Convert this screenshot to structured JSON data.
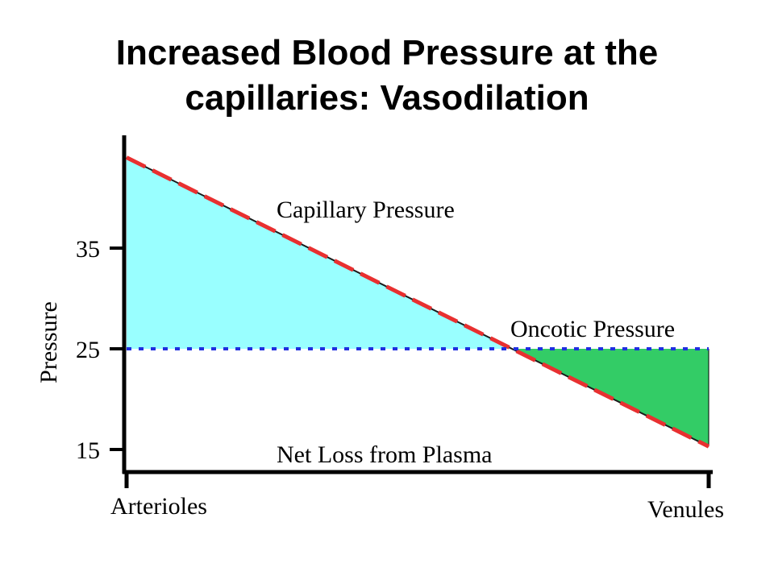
{
  "slide": {
    "title_line1": "Increased Blood Pressure at the",
    "title_line2": "capillaries:  Vasodilation"
  },
  "chart_data": {
    "type": "area",
    "title": "",
    "ylabel": "Pressure",
    "xlabel": "",
    "x_tick_labels": [
      "Arterioles",
      "Venules"
    ],
    "y_ticks": [
      35,
      25,
      15
    ],
    "ylim": [
      13,
      45
    ],
    "xlim": [
      0,
      1
    ],
    "grid": false,
    "series": [
      {
        "name": "Capillary Pressure",
        "x": [
          0,
          1
        ],
        "values": [
          44,
          15.3
        ],
        "color": "#e83030",
        "style": "dashed"
      },
      {
        "name": "Oncotic Pressure",
        "x": [
          0,
          1
        ],
        "values": [
          25,
          25
        ],
        "color": "#1f2fe0",
        "style": "dotted"
      }
    ],
    "regions": [
      {
        "label": "",
        "from": 0,
        "to": 0.6625,
        "color": "#99ffff"
      },
      {
        "label": "Net Loss from Plasma",
        "from": 0.6625,
        "to": 1,
        "color": "#33cc66"
      }
    ],
    "annotations": [
      "Capillary Pressure",
      "Oncotic Pressure",
      "Net Loss from Plasma"
    ]
  }
}
